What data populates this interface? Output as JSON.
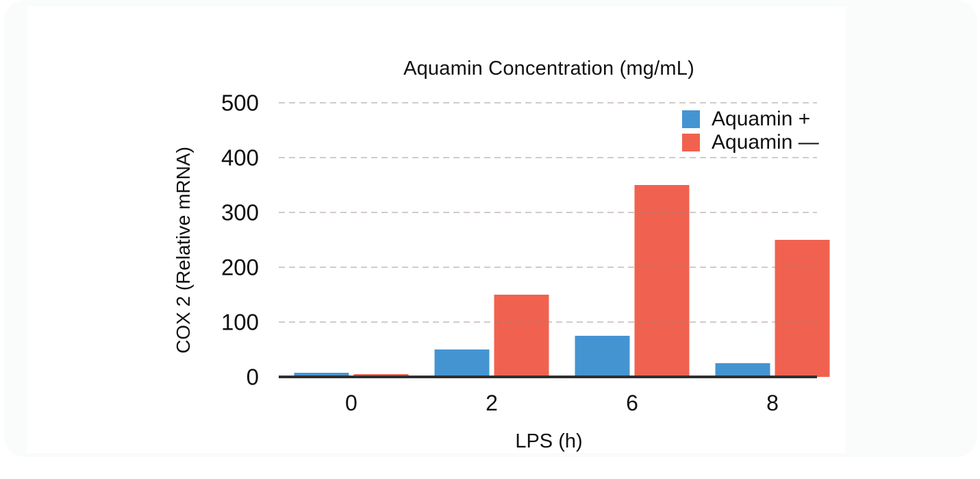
{
  "page": {
    "background_color": "#fafcfc",
    "card_color": "#ffffff"
  },
  "chart_data": {
    "type": "bar",
    "title": "Aquamin Concentration (mg/mL)",
    "xlabel": "LPS (h)",
    "ylabel": "COX 2 (Relative mRNA)",
    "categories": [
      "0",
      "2",
      "6",
      "8"
    ],
    "series": [
      {
        "name": "Aquamin +",
        "color": "#4594d2",
        "values": [
          8,
          50,
          75,
          25
        ]
      },
      {
        "name": "Aquamin —",
        "color": "#f0624f",
        "values": [
          5,
          150,
          350,
          250
        ]
      }
    ],
    "ylim": [
      0,
      500
    ],
    "yticks": [
      0,
      100,
      200,
      300,
      400,
      500
    ],
    "grid": {
      "horizontal": true,
      "style": "dashed",
      "color": "#d7cfcf"
    },
    "legend_position": "top-right",
    "axis_line_color": "#2f2f2f",
    "text_color": "#111111"
  }
}
